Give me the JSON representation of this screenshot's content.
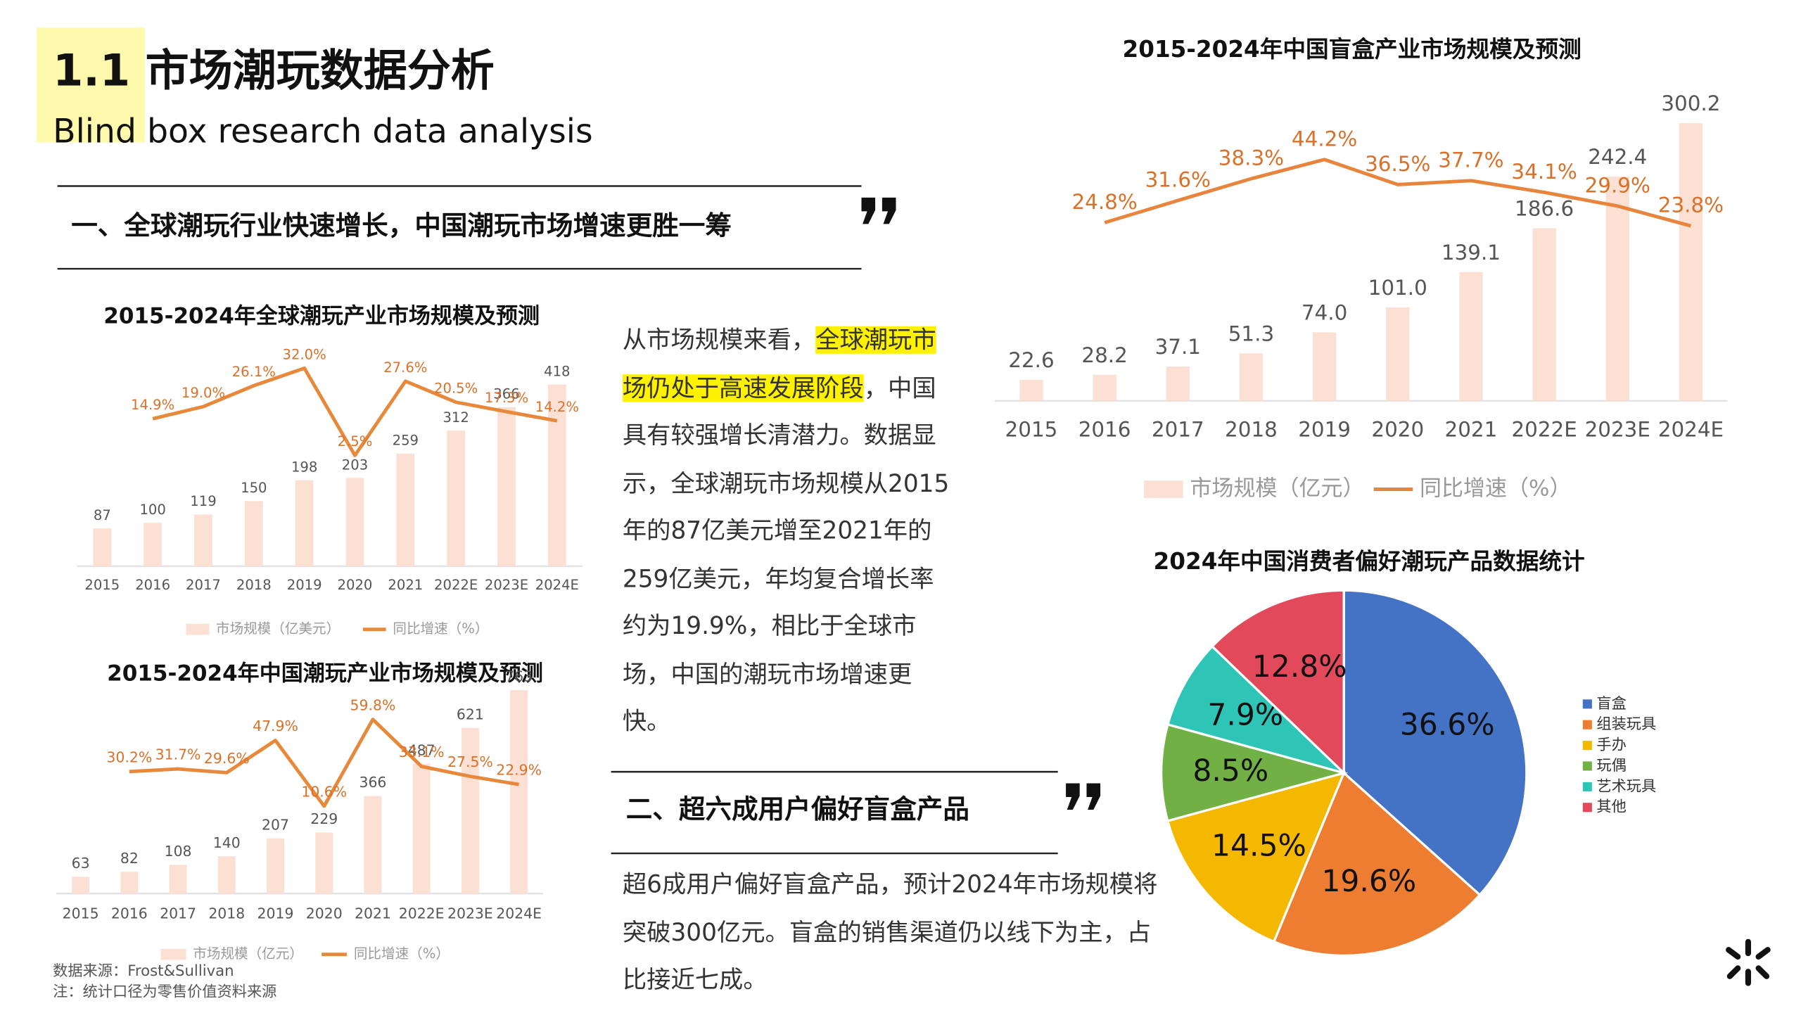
{
  "header": {
    "title": "1.1 市场潮玩数据分析",
    "subtitle": "Blind box research data analysis"
  },
  "sections": [
    {
      "heading": "一、全球潮玩行业快速增长，中国潮玩市场增速更胜一筹",
      "text": [
        {
          "text": "从市场规模来看，"
        },
        {
          "text": "全球潮玩市场仍处于高速发展阶段",
          "highlight": true
        },
        {
          "text": "，中国具有较强增长清潜力。数据显示，全球潮玩市场规模从2015年的87亿美元增至2021年的259亿美元，年均复合增长率约为19.9%，相比于全球市场，中国的潮玩市场增速更快。"
        }
      ]
    },
    {
      "heading": "二、超六成用户偏好盲盒产品",
      "text": [
        {
          "text": "超6成用户偏好盲盒产品，预计2024年市场规模将突破300亿元。盲盒的销售渠道仍以线下为主，占比接近七成。"
        }
      ]
    }
  ],
  "sources": [
    "数据来源：Frost&Sullivan",
    "注：统计口径为零售价值资料来源"
  ],
  "chart_data": [
    {
      "type": "bar",
      "title": "2015-2024年全球潮玩产业市场规模及预测",
      "categories": [
        "2015",
        "2016",
        "2017",
        "2018",
        "2019",
        "2020",
        "2021",
        "2022E",
        "2023E",
        "2024E"
      ],
      "ylim": [
        0,
        510
      ],
      "y2lim": [
        -35,
        40
      ],
      "series": [
        {
          "name": "市场规模（亿美元）",
          "color": "#fbe0d3",
          "values": [
            87,
            100,
            119,
            150,
            198,
            203,
            259,
            312,
            366,
            418
          ]
        },
        {
          "name": "同比增速（%）",
          "color": "#e8883a",
          "axis": "y2",
          "type": "line",
          "values": [
            null,
            14.9,
            19.0,
            26.1,
            32.0,
            2.5,
            27.6,
            20.5,
            17.3,
            14.2
          ],
          "value_labels": [
            null,
            "14.9%",
            "19.0%",
            "26.1%",
            "32.0%",
            "2.5%",
            "27.6%",
            "20.5%",
            "17.3%",
            "14.2%"
          ]
        }
      ]
    },
    {
      "type": "bar",
      "title": "2015-2024年中国潮玩产业市场规模及预测",
      "categories": [
        "2015",
        "2016",
        "2017",
        "2018",
        "2019",
        "2020",
        "2021",
        "2022E",
        "2023E",
        "2024E"
      ],
      "ylim": [
        0,
        767
      ],
      "y2lim": [
        -39,
        77
      ],
      "series": [
        {
          "name": "市场规模（亿元）",
          "color": "#fbe0d3",
          "values": [
            63,
            82,
            108,
            140,
            207,
            229,
            366,
            487,
            621,
            763
          ]
        },
        {
          "name": "同比增速（%）",
          "color": "#e8883a",
          "axis": "y2",
          "type": "line",
          "values": [
            null,
            30.2,
            31.7,
            29.6,
            47.9,
            10.6,
            59.8,
            33.1,
            27.5,
            22.9
          ],
          "value_labels": [
            null,
            "30.2%",
            "31.7%",
            "29.6%",
            "47.9%",
            "10.6%",
            "59.8%",
            "33.1%",
            "27.5%",
            "22.9%"
          ]
        }
      ]
    },
    {
      "type": "bar",
      "title": "2015-2024年中国盲盒产业市场规模及预测",
      "categories": [
        "2015",
        "2016",
        "2017",
        "2018",
        "2019",
        "2020",
        "2021",
        "2022E",
        "2023E",
        "2024E"
      ],
      "ylim": [
        0,
        334
      ],
      "y2lim": [
        -30,
        65
      ],
      "series": [
        {
          "name": "市场规模（亿元）",
          "color": "#fbe0d3",
          "values": [
            22.6,
            28.2,
            37.1,
            51.3,
            74.0,
            101.0,
            139.1,
            186.6,
            242.4,
            300.2
          ],
          "value_labels": [
            "22.6",
            "28.2",
            "37.1",
            "51.3",
            "74.0",
            "101.0",
            "139.1",
            "186.6",
            "242.4",
            "300.2"
          ]
        },
        {
          "name": "同比增速（%）",
          "color": "#e8843c",
          "axis": "y2",
          "type": "line",
          "values": [
            null,
            24.8,
            31.6,
            38.3,
            44.2,
            36.5,
            37.7,
            34.1,
            29.9,
            23.8
          ],
          "value_labels": [
            null,
            "24.8%",
            "31.6%",
            "38.3%",
            "44.2%",
            "36.5%",
            "37.7%",
            "34.1%",
            "29.9%",
            "23.8%"
          ]
        }
      ]
    },
    {
      "type": "pie",
      "title": "2024年中国消费者偏好潮玩产品数据统计",
      "categories": [
        "盲盒",
        "组装玩具",
        "手办",
        "玩偶",
        "艺术玩具",
        "其他"
      ],
      "values": [
        36.6,
        19.6,
        14.5,
        8.5,
        7.9,
        12.8
      ],
      "value_labels": [
        "36.6%",
        "19.6%",
        "14.5%",
        "8.5%",
        "7.9%",
        "12.8%"
      ],
      "colors": [
        "#4472c4",
        "#ed7d31",
        "#f5b800",
        "#70b045",
        "#2ec4b6",
        "#e24a5c"
      ],
      "legend": "right"
    }
  ]
}
